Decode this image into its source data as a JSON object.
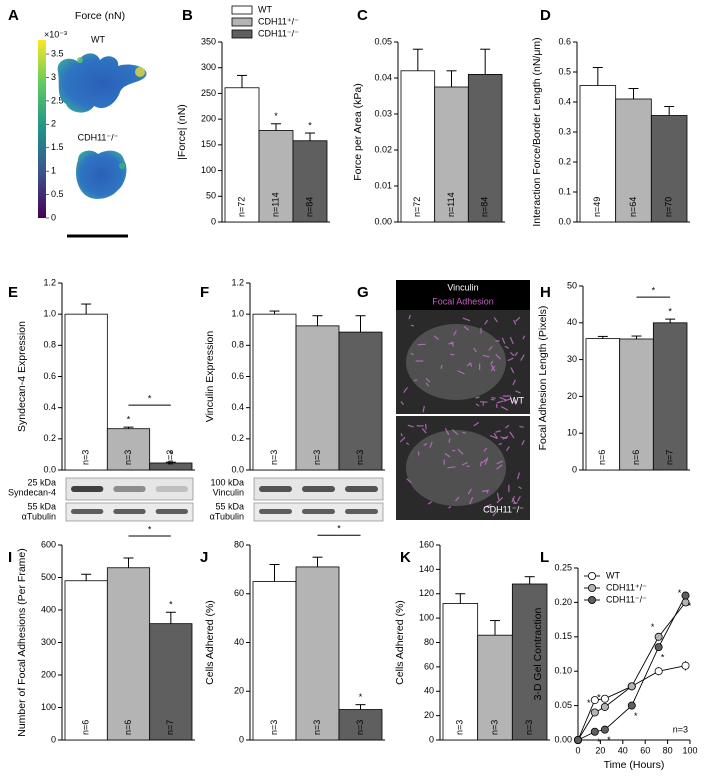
{
  "chart_data": [
    {
      "panel": "A",
      "type": "heatmap-image",
      "title": "Force (nN)",
      "labels": [
        "WT",
        "CDH11⁻/⁻"
      ],
      "colorbar_lim": [
        0,
        3.8
      ],
      "colorbar_ticks": [
        0,
        0.5,
        1,
        1.5,
        2,
        2.5,
        3,
        3.5
      ],
      "colorbar_exponent": "×10⁻³"
    },
    {
      "panel": "B",
      "type": "bar",
      "ylabel": "|Force| (nN)",
      "categories": [
        "WT",
        "CDH11⁺/⁻",
        "CDH11⁻/⁻"
      ],
      "colors": [
        "#ffffff",
        "#b4b4b4",
        "#5f5f5f"
      ],
      "values": [
        261,
        178,
        158
      ],
      "errors": [
        24,
        13,
        15
      ],
      "n_labels": [
        "n=72",
        "n=114",
        "n=84"
      ],
      "ylim": [
        0,
        350
      ],
      "yticks": [
        0,
        50,
        100,
        150,
        200,
        250,
        300,
        350
      ],
      "legend": "top",
      "significance_label": "*",
      "stars": [
        1,
        2
      ]
    },
    {
      "panel": "C",
      "type": "bar",
      "ylabel": "Force per Area (kPa)",
      "colors": [
        "#ffffff",
        "#b4b4b4",
        "#5f5f5f"
      ],
      "values": [
        0.042,
        0.0375,
        0.041
      ],
      "errors": [
        0.006,
        0.0045,
        0.007
      ],
      "n_labels": [
        "n=72",
        "n=114",
        "n=84"
      ],
      "ylim": [
        0,
        0.05
      ],
      "yticks": [
        {
          "value": 0,
          "label": "0.00"
        },
        {
          "value": 0.01,
          "label": "0.01"
        },
        {
          "value": 0.02,
          "label": "0.02"
        },
        {
          "value": 0.03,
          "label": "0.03"
        },
        {
          "value": 0.04,
          "label": "0.04"
        },
        {
          "value": 0.05,
          "label": "0.05"
        }
      ]
    },
    {
      "panel": "D",
      "type": "bar",
      "ylabel": "Interaction Force/Border Length (nN/μm)",
      "colors": [
        "#ffffff",
        "#b4b4b4",
        "#5f5f5f"
      ],
      "values": [
        0.455,
        0.41,
        0.355
      ],
      "errors": [
        0.06,
        0.035,
        0.03
      ],
      "n_labels": [
        "n=49",
        "n=64",
        "n=70"
      ],
      "ylim": [
        0,
        0.6
      ],
      "yticks": [
        {
          "value": 0,
          "label": "0.0"
        },
        0.1,
        0.2,
        0.3,
        0.4,
        0.5,
        0.6
      ]
    },
    {
      "panel": "E",
      "type": "bar",
      "ylabel": "Syndecan-4 Expression",
      "colors": [
        "#ffffff",
        "#b4b4b4",
        "#5f5f5f"
      ],
      "values": [
        1.0,
        0.265,
        0.045
      ],
      "errors": [
        0.065,
        0.01,
        0.005
      ],
      "n_labels": [
        "n=3",
        "n=3",
        "n=3"
      ],
      "ylim": [
        0,
        1.2
      ],
      "yticks": [
        {
          "value": 0,
          "label": "0.0"
        },
        0.2,
        0.4,
        0.6,
        0.8,
        {
          "value": 1,
          "label": "1.0"
        },
        1.2
      ],
      "significance_label": "*",
      "stars": [
        1,
        2
      ],
      "bracket": [
        1,
        2
      ],
      "blot_labels": [
        "25 kDa",
        "Syndecan-4",
        "55 kDa",
        "αTubulin"
      ]
    },
    {
      "panel": "F",
      "type": "bar",
      "ylabel": "Vinculin Expression",
      "colors": [
        "#ffffff",
        "#b4b4b4",
        "#5f5f5f"
      ],
      "values": [
        1.0,
        0.925,
        0.885
      ],
      "errors": [
        0.02,
        0.065,
        0.105
      ],
      "n_labels": [
        "n=3",
        "n=3",
        "n=3"
      ],
      "ylim": [
        0,
        1.2
      ],
      "yticks": [
        {
          "value": 0,
          "label": "0.0"
        },
        0.2,
        0.4,
        0.6,
        0.8,
        {
          "value": 1,
          "label": "1.0"
        },
        1.2
      ],
      "blot_labels": [
        "100 kDa",
        "Vinculin",
        "55 kDa",
        "αTubulin"
      ]
    },
    {
      "panel": "G",
      "type": "image",
      "labels": [
        "Vinculin",
        "Focal Adhesion",
        "WT",
        "CDH11⁻/⁻"
      ]
    },
    {
      "panel": "H",
      "type": "bar",
      "ylabel": "Focal Adhesion Length (Pixels)",
      "colors": [
        "#ffffff",
        "#b4b4b4",
        "#5f5f5f"
      ],
      "values": [
        35.7,
        35.6,
        40.0
      ],
      "errors": [
        0.6,
        0.8,
        1.0
      ],
      "n_labels": [
        "n=6",
        "n=6",
        "n=7"
      ],
      "ylim": [
        0,
        50
      ],
      "yticks": [
        0,
        10,
        20,
        30,
        40,
        50
      ],
      "significance_label": "*",
      "stars": [
        2
      ],
      "bracket": [
        1,
        2
      ]
    },
    {
      "panel": "I",
      "type": "bar",
      "ylabel": "Number of Focal Adhesions (Per Frame)",
      "colors": [
        "#ffffff",
        "#b4b4b4",
        "#5f5f5f"
      ],
      "values": [
        490,
        530,
        358
      ],
      "errors": [
        20,
        30,
        35
      ],
      "n_labels": [
        "n=6",
        "n=6",
        "n=7"
      ],
      "ylim": [
        0,
        600
      ],
      "yticks": [
        0,
        100,
        200,
        300,
        400,
        500,
        600
      ],
      "significance_label": "*",
      "stars": [
        2
      ],
      "bracket": [
        1,
        2
      ]
    },
    {
      "panel": "J",
      "type": "bar",
      "ylabel": "Cells Adhered (%)",
      "colors": [
        "#ffffff",
        "#b4b4b4",
        "#5f5f5f"
      ],
      "values": [
        65,
        71,
        12.5
      ],
      "errors": [
        7,
        4,
        2
      ],
      "n_labels": [
        "n=3",
        "n=3",
        "n=3"
      ],
      "ylim": [
        0,
        80
      ],
      "yticks": [
        0,
        20,
        40,
        60,
        80
      ],
      "significance_label": "*",
      "stars": [
        2
      ],
      "bracket": [
        1,
        2
      ]
    },
    {
      "panel": "K",
      "type": "bar",
      "ylabel": "Cells Adhered (%)",
      "colors": [
        "#ffffff",
        "#b4b4b4",
        "#5f5f5f"
      ],
      "values": [
        112,
        86,
        128
      ],
      "errors": [
        8,
        12,
        6
      ],
      "n_labels": [
        "n=3",
        "n=3",
        "n=3"
      ],
      "ylim": [
        0,
        160
      ],
      "yticks": [
        0,
        20,
        40,
        60,
        80,
        100,
        120,
        140,
        160
      ]
    },
    {
      "panel": "L",
      "type": "line",
      "xlabel": "Time (Hours)",
      "ylabel": "3-D Gel Contraction",
      "annotation": "n=3",
      "legend": "top-left",
      "significance_label": "*",
      "x": [
        0,
        15,
        24,
        48,
        72,
        96
      ],
      "xlim": [
        0,
        100
      ],
      "xticks": [
        0,
        20,
        40,
        60,
        80,
        100
      ],
      "ylim": [
        0,
        0.25
      ],
      "yticks": [
        {
          "value": 0,
          "label": "0.00"
        },
        {
          "value": 0.05,
          "label": "0.05"
        },
        {
          "value": 0.1,
          "label": "0.10"
        },
        {
          "value": 0.15,
          "label": "0.15"
        },
        {
          "value": 0.2,
          "label": "0.20"
        },
        {
          "value": 0.25,
          "label": "0.25"
        }
      ],
      "series": [
        {
          "name": "WT",
          "color": "#ffffff",
          "values": [
            0,
            0.058,
            0.06,
            0.078,
            0.1,
            0.108
          ],
          "errors": [
            0,
            0.004,
            0.004,
            0.003,
            0.006,
            0.007
          ],
          "stars": []
        },
        {
          "name": "CDH11⁺/⁻",
          "color": "#b4b4b4",
          "values": [
            0,
            0.04,
            0.048,
            0.078,
            0.15,
            0.2
          ],
          "errors": [
            0,
            0.004,
            0.004,
            0.003,
            0.004,
            0.004
          ],
          "stars": [
            1,
            2,
            4,
            5
          ]
        },
        {
          "name": "CDH11⁻/⁻",
          "color": "#5f5f5f",
          "values": [
            0,
            0.012,
            0.015,
            0.05,
            0.135,
            0.21
          ],
          "errors": [
            0,
            0.003,
            0.003,
            0.003,
            0.004,
            0.004
          ],
          "stars": [
            1,
            2,
            3,
            4,
            5
          ]
        }
      ]
    }
  ]
}
